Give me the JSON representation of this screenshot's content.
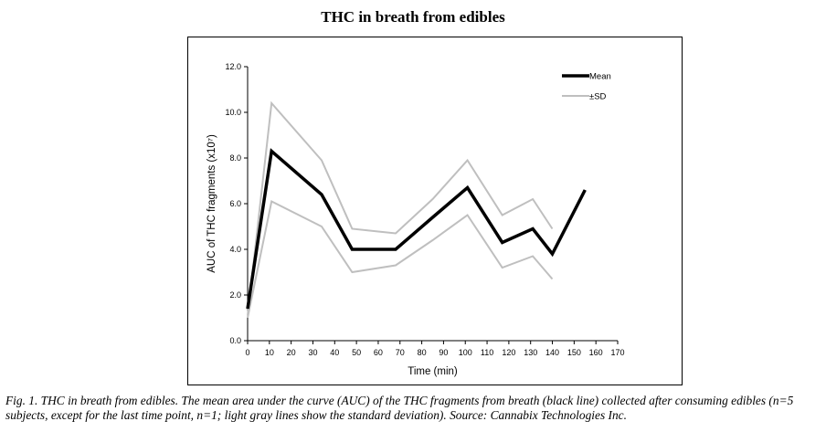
{
  "title": "THC in breath from edibles",
  "caption": "Fig. 1. THC in breath from edibles. The mean area under the curve (AUC) of the THC fragments from breath (black line) collected after consuming edibles (n=5 subjects, except for the last time point, n=1; light gray lines show the standard deviation). Source: Cannabix Technologies Inc.",
  "chart_data": {
    "type": "line",
    "xlabel": "Time (min)",
    "ylabel": "AUC of THC fragments (x10⁷)",
    "xlim": [
      0,
      170
    ],
    "ylim": [
      0,
      12
    ],
    "x_ticks": [
      "0",
      "10",
      "20",
      "30",
      "40",
      "50",
      "60",
      "70",
      "80",
      "90",
      "100",
      "110",
      "120",
      "130",
      "140",
      "150",
      "160",
      "170"
    ],
    "y_ticks": [
      "0.0",
      "2.0",
      "4.0",
      "6.0",
      "8.0",
      "10.0",
      "12.0"
    ],
    "grid": false,
    "legend_position": "top-right",
    "series": [
      {
        "name": "Mean",
        "color": "#000000",
        "x": [
          0,
          11,
          34,
          48,
          68,
          85,
          101,
          117,
          131,
          140,
          155
        ],
        "y": [
          1.4,
          8.3,
          6.4,
          4.0,
          4.0,
          5.4,
          6.7,
          4.3,
          4.9,
          3.8,
          6.6
        ]
      },
      {
        "name": "±SD",
        "color": "#bfbfbf",
        "x": [
          0,
          11,
          34,
          48,
          68,
          85,
          101,
          117,
          131,
          140
        ],
        "y": [
          1.1,
          10.4,
          7.9,
          4.9,
          4.7,
          6.2,
          7.9,
          5.5,
          6.2,
          4.9
        ]
      },
      {
        "name": "",
        "color": "#bfbfbf",
        "x": [
          0,
          11,
          34,
          48,
          68,
          85,
          101,
          117,
          131,
          140
        ],
        "y": [
          1.0,
          6.1,
          5.0,
          3.0,
          3.3,
          4.4,
          5.5,
          3.2,
          3.7,
          2.7
        ]
      }
    ]
  }
}
